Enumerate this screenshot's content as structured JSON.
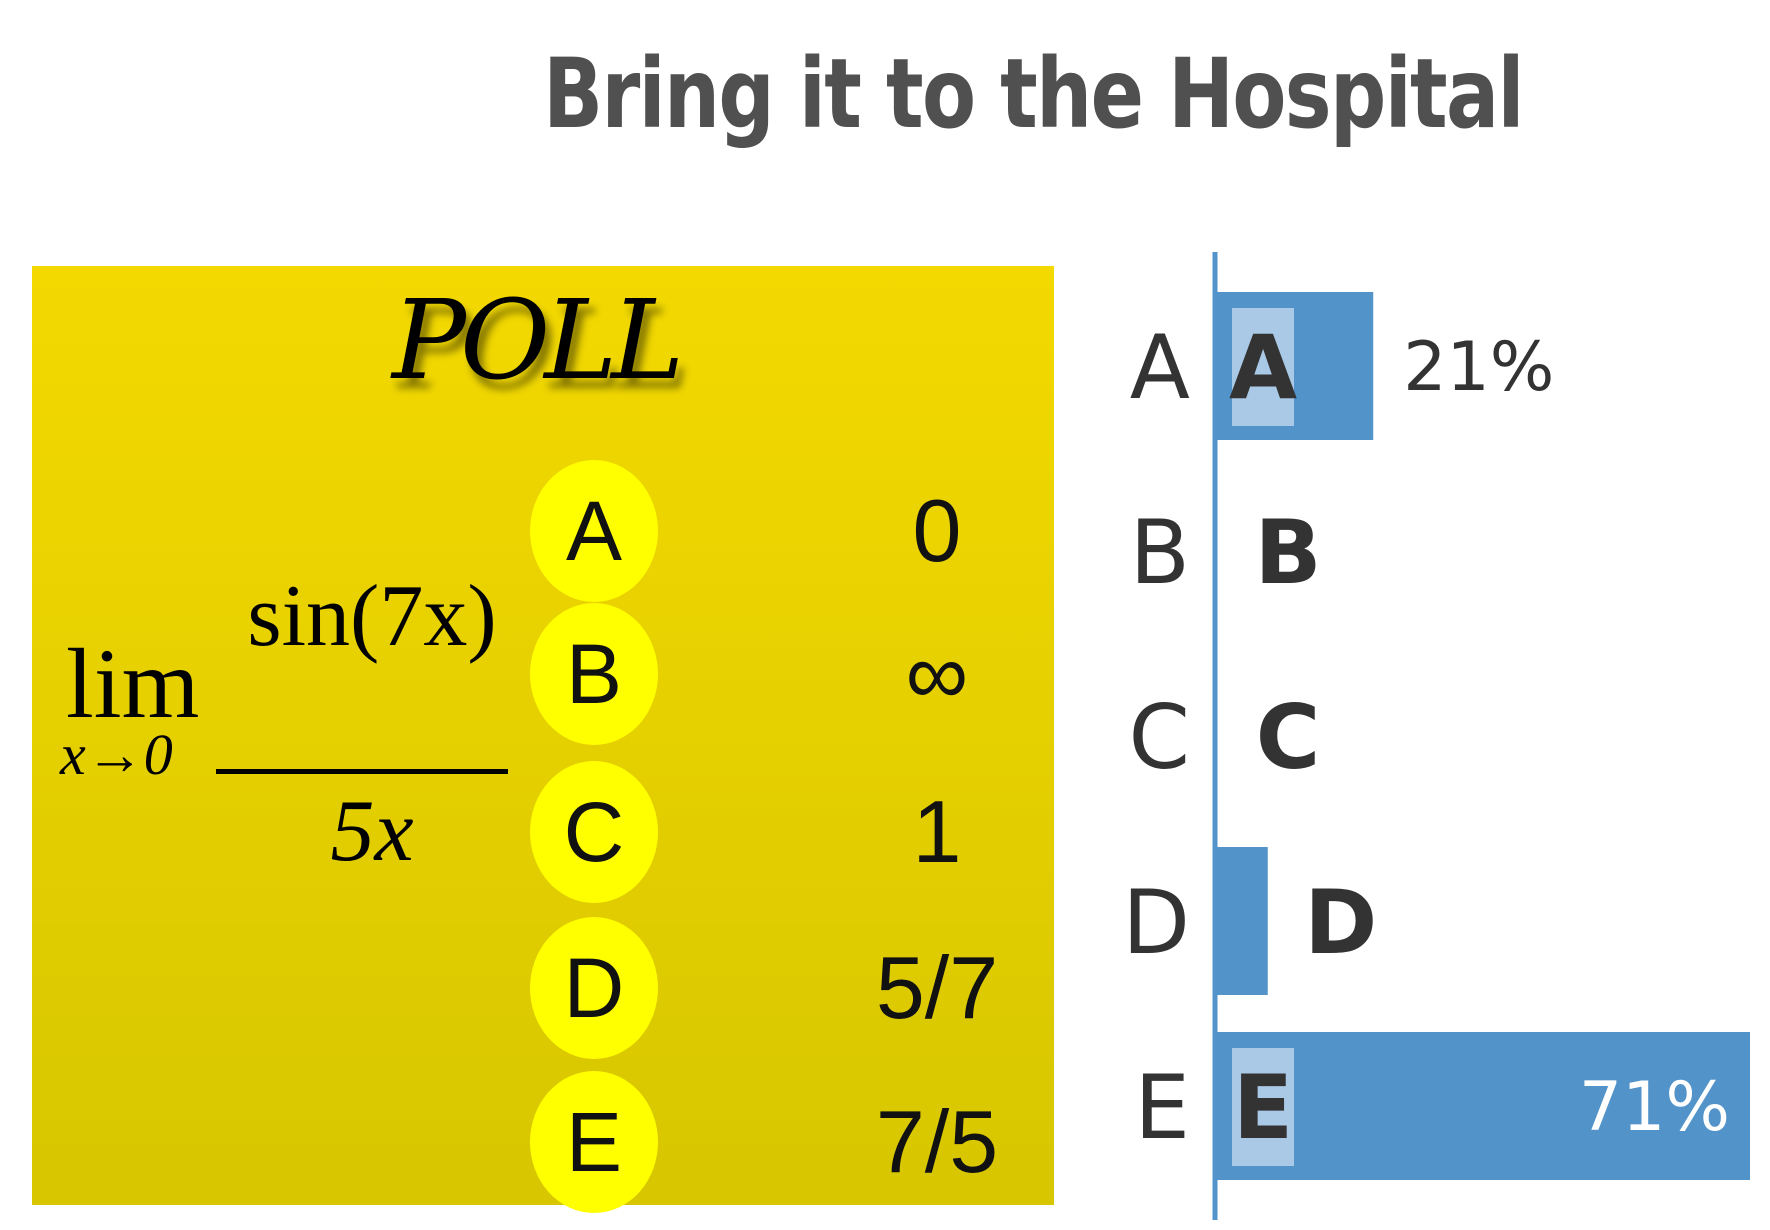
{
  "title": "Bring it to the Hospital",
  "poll": {
    "heading": "POLL",
    "question": {
      "lim": "lim",
      "subscript": "x→0",
      "numerator": "sin(7x)",
      "denominator": "5x"
    },
    "options": [
      {
        "letter": "A",
        "value": "0"
      },
      {
        "letter": "B",
        "value": "∞"
      },
      {
        "letter": "C",
        "value": "1"
      },
      {
        "letter": "D",
        "value": "5/7"
      },
      {
        "letter": "E",
        "value": "7/5"
      }
    ]
  },
  "colors": {
    "panel": "#e6d000",
    "option_circle": "#ffff00",
    "bar": "#5294c9",
    "highlight": "#a9c9e6"
  },
  "chart_data": {
    "type": "bar",
    "orientation": "horizontal",
    "categories": [
      "A",
      "B",
      "C",
      "D",
      "E"
    ],
    "values": [
      21,
      0,
      0,
      7,
      71
    ],
    "data_labels": [
      "21%",
      "",
      "",
      "",
      "71%"
    ],
    "xlim": [
      0,
      71
    ],
    "grid": false
  }
}
